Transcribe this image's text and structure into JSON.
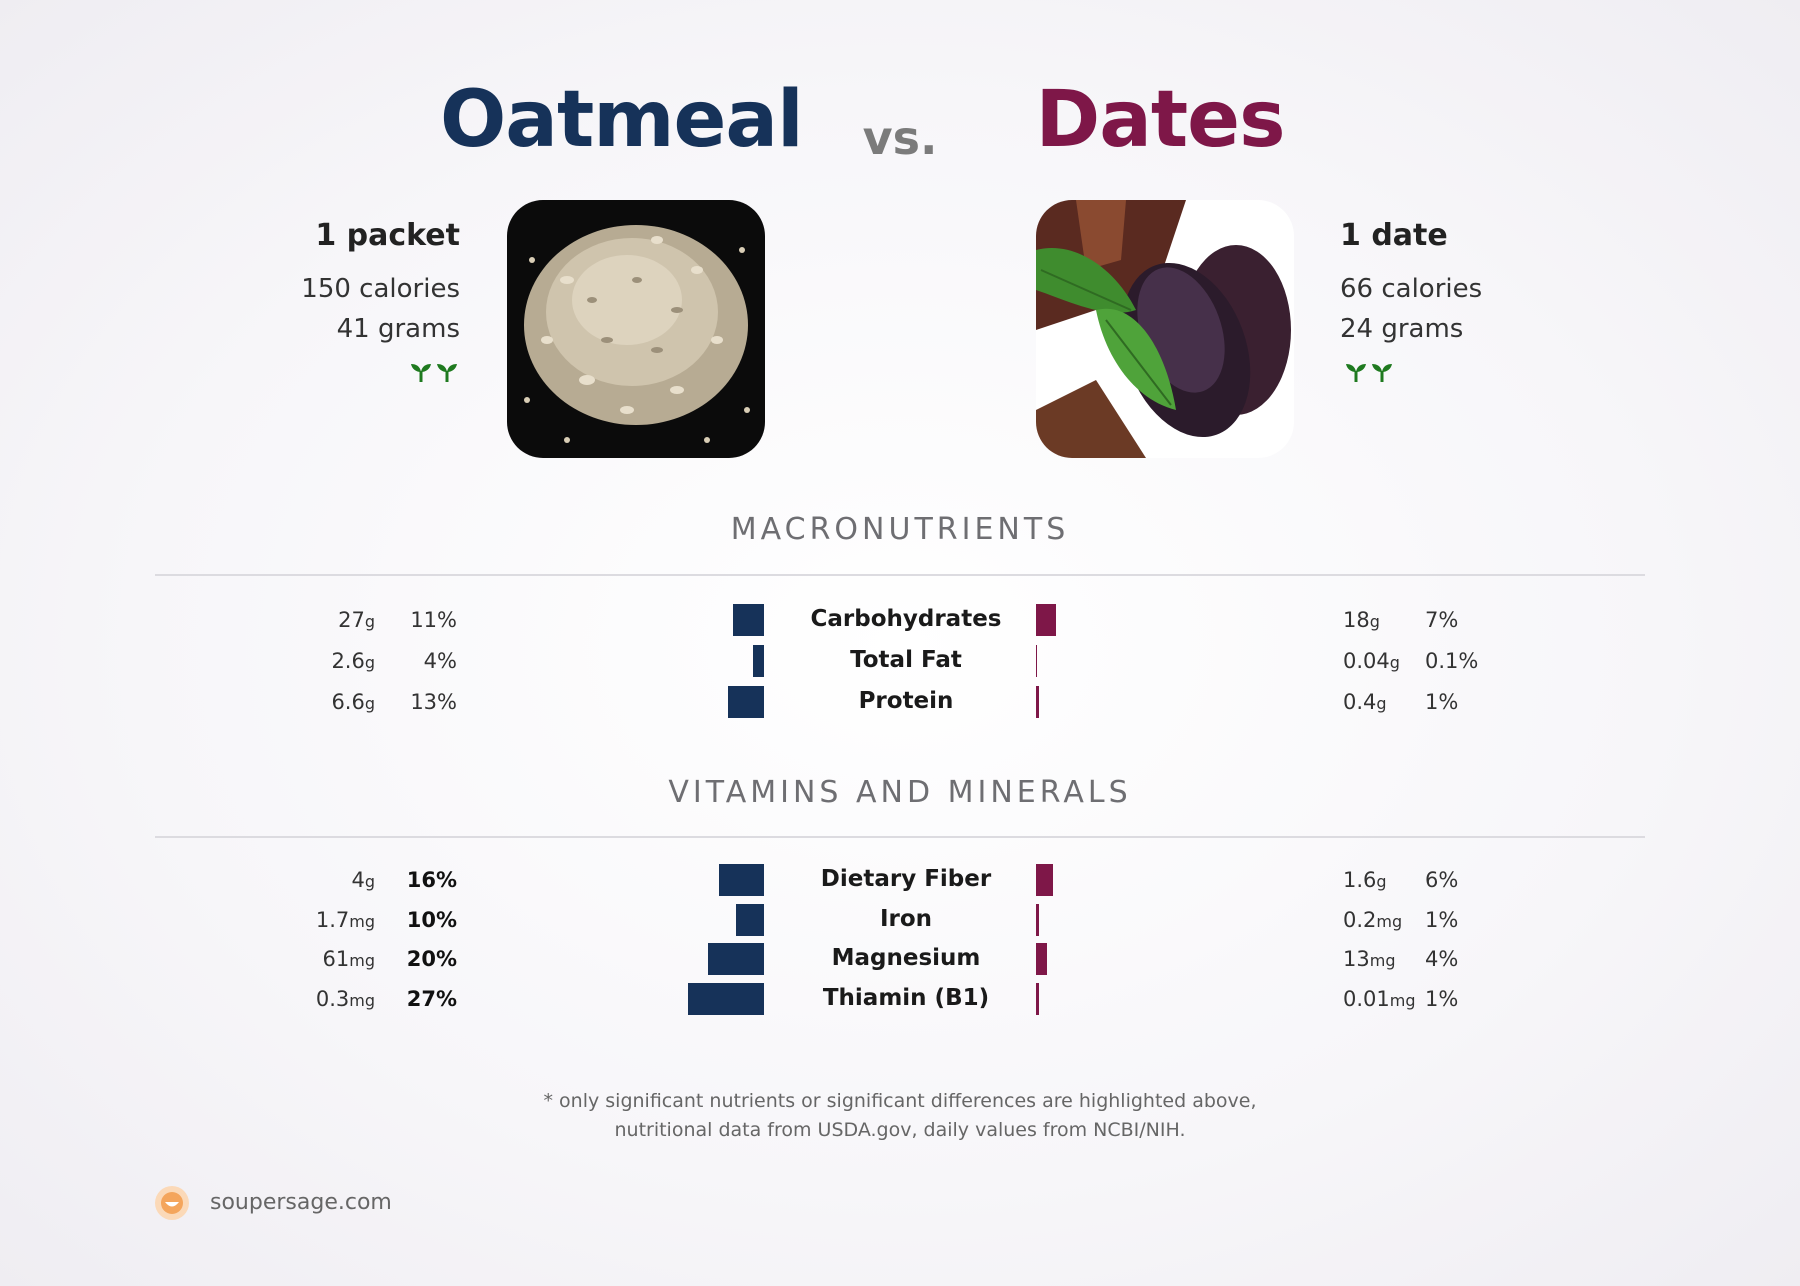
{
  "header": {
    "left_title": "Oatmeal",
    "vs": "vs.",
    "right_title": "Dates",
    "left_color": "#163259",
    "right_color": "#7e1748"
  },
  "left_food": {
    "serving": "1 packet",
    "calories": "150 calories",
    "grams": "41 grams",
    "icons": [
      "sprout-icon",
      "sprout-icon"
    ]
  },
  "right_food": {
    "serving": "1 date",
    "calories": "66 calories",
    "grams": "24 grams",
    "icons": [
      "sprout-icon",
      "sprout-icon"
    ]
  },
  "sections": {
    "macros_title": "MACRONUTRIENTS",
    "vitamins_title": "VITAMINS AND MINERALS"
  },
  "chart_data": {
    "type": "bar",
    "macros": [
      {
        "name": "Carbohydrates",
        "left_amount": "27",
        "left_unit": "g",
        "left_pct": "11%",
        "left_value": 11,
        "left_bold": false,
        "right_amount": "18",
        "right_unit": "g",
        "right_pct": "7%",
        "right_value": 7
      },
      {
        "name": "Total Fat",
        "left_amount": "2.6",
        "left_unit": "g",
        "left_pct": "4%",
        "left_value": 4,
        "left_bold": false,
        "right_amount": "0.04",
        "right_unit": "g",
        "right_pct": "0.1%",
        "right_value": 0.1
      },
      {
        "name": "Protein",
        "left_amount": "6.6",
        "left_unit": "g",
        "left_pct": "13%",
        "left_value": 13,
        "left_bold": false,
        "right_amount": "0.4",
        "right_unit": "g",
        "right_pct": "1%",
        "right_value": 1
      }
    ],
    "vitamins": [
      {
        "name": "Dietary Fiber",
        "left_amount": "4",
        "left_unit": "g",
        "left_pct": "16%",
        "left_value": 16,
        "left_bold": true,
        "right_amount": "1.6",
        "right_unit": "g",
        "right_pct": "6%",
        "right_value": 6
      },
      {
        "name": "Iron",
        "left_amount": "1.7",
        "left_unit": "mg",
        "left_pct": "10%",
        "left_value": 10,
        "left_bold": true,
        "right_amount": "0.2",
        "right_unit": "mg",
        "right_pct": "1%",
        "right_value": 1
      },
      {
        "name": "Magnesium",
        "left_amount": "61",
        "left_unit": "mg",
        "left_pct": "20%",
        "left_value": 20,
        "left_bold": true,
        "right_amount": "13",
        "right_unit": "mg",
        "right_pct": "4%",
        "right_value": 4
      },
      {
        "name": "Thiamin (B1)",
        "left_amount": "0.3",
        "left_unit": "mg",
        "left_pct": "27%",
        "left_value": 27,
        "left_bold": true,
        "right_amount": "0.01",
        "right_unit": "mg",
        "right_pct": "1%",
        "right_value": 1
      }
    ]
  },
  "footer": {
    "note_line1": "* only significant nutrients or significant differences are highlighted above,",
    "note_line2": "nutritional data from USDA.gov, daily values from NCBI/NIH.",
    "brand": "soupersage.com"
  }
}
